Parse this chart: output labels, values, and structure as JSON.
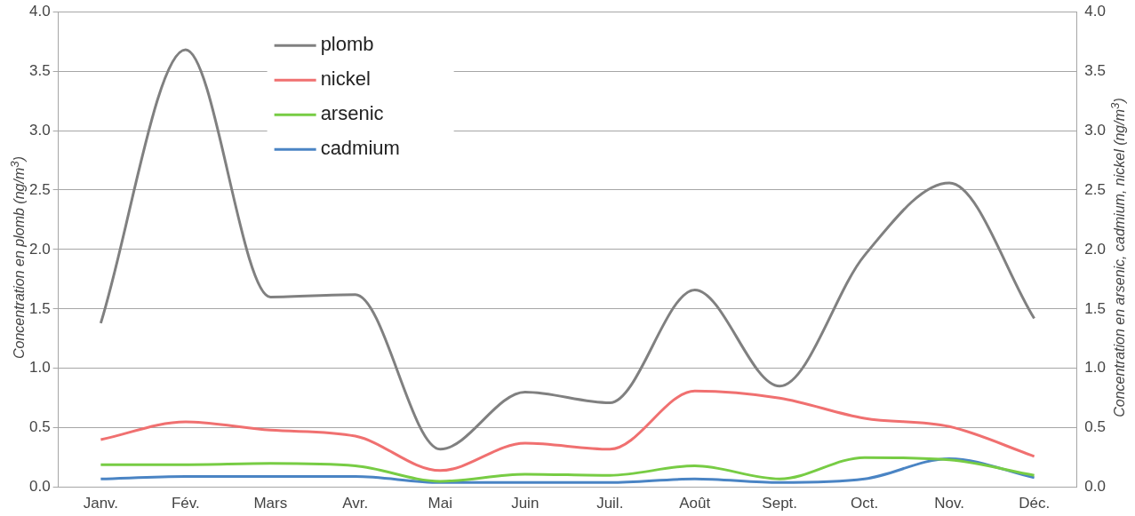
{
  "chart_data": {
    "type": "line",
    "ylabel": "Concentration en plomb (ng/m$^{3}$)",
    "y2label": "Concentration en arsenic, cadmium, nickel (ng/m$^{3}$)",
    "categories": [
      "Janv.",
      "Fév.",
      "Mars",
      "Avr.",
      "Mai",
      "Juin",
      "Juil.",
      "Août",
      "Sept.",
      "Oct.",
      "Nov.",
      "Déc."
    ],
    "series": [
      {
        "name": "plomb",
        "color": "#808080",
        "values": [
          1.38,
          3.68,
          1.6,
          1.62,
          0.32,
          0.8,
          0.71,
          1.66,
          0.85,
          1.95,
          2.56,
          1.42
        ]
      },
      {
        "name": "nickel",
        "color": "#f07070",
        "axis": "y2",
        "values": [
          0.4,
          0.55,
          0.48,
          0.43,
          0.14,
          0.37,
          0.32,
          0.81,
          0.75,
          0.58,
          0.51,
          0.26
        ]
      },
      {
        "name": "arsenic",
        "color": "#77cc44",
        "axis": "y2",
        "values": [
          0.19,
          0.19,
          0.2,
          0.18,
          0.05,
          0.11,
          0.1,
          0.18,
          0.07,
          0.25,
          0.23,
          0.1
        ]
      },
      {
        "name": "cadmium",
        "color": "#4a84c4",
        "axis": "y2",
        "values": [
          0.07,
          0.09,
          0.09,
          0.09,
          0.04,
          0.04,
          0.04,
          0.07,
          0.04,
          0.07,
          0.24,
          0.08
        ]
      }
    ],
    "ylim": [
      0,
      4
    ],
    "yticks": [
      {
        "value": 0,
        "label": "0.0"
      },
      {
        "value": 0.5,
        "label": "0.5"
      },
      {
        "value": 1,
        "label": "1.0"
      },
      {
        "value": 1.5,
        "label": "1.5"
      },
      {
        "value": 2,
        "label": "2.0"
      },
      {
        "value": 2.5,
        "label": "2.5"
      },
      {
        "value": 3,
        "label": "3.0"
      },
      {
        "value": 3.5,
        "label": "3.5"
      },
      {
        "value": 4,
        "label": "4.0"
      }
    ],
    "y2lim": [
      0,
      4
    ],
    "y2ticks": [
      {
        "value": 0,
        "label": "0.0"
      },
      {
        "value": 0.5,
        "label": "0.5"
      },
      {
        "value": 1,
        "label": "1.0"
      },
      {
        "value": 1.5,
        "label": "1.5"
      },
      {
        "value": 2,
        "label": "2.0"
      },
      {
        "value": 2.5,
        "label": "2.5"
      },
      {
        "value": 3,
        "label": "3.0"
      },
      {
        "value": 3.5,
        "label": "3.5"
      },
      {
        "value": 4,
        "label": "4.0"
      }
    ],
    "grid": "y",
    "legend": "top left",
    "marker": "none",
    "line_style": "solid"
  }
}
